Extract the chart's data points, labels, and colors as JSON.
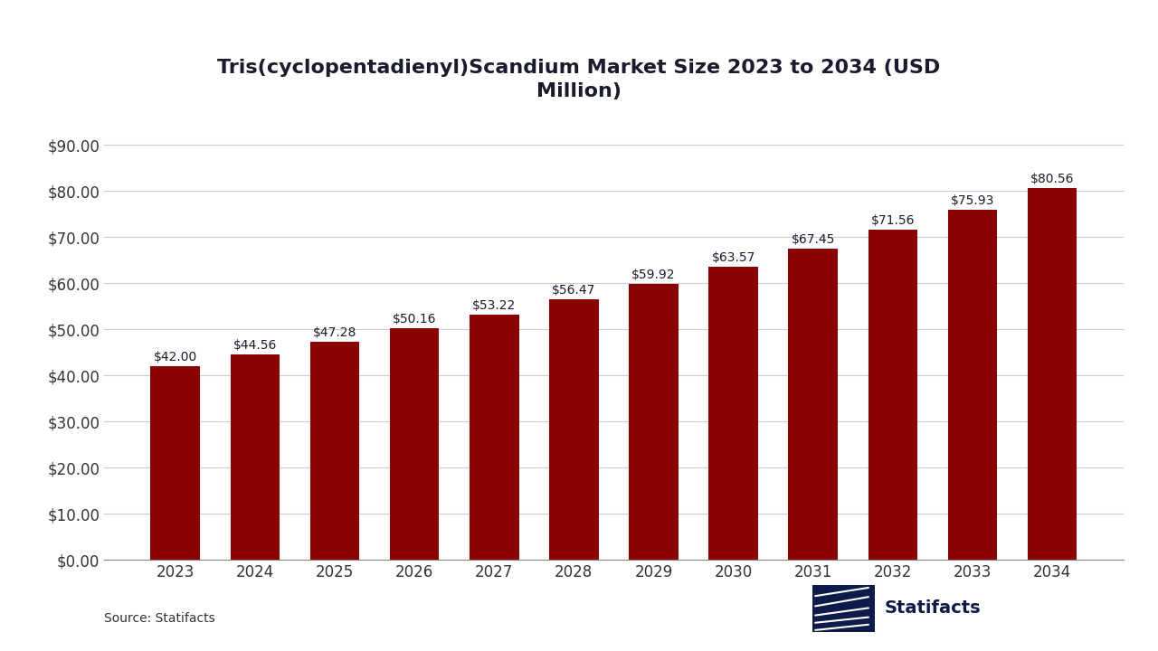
{
  "title": "Tris(cyclopentadienyl)Scandium Market Size 2023 to 2034 (USD\nMillion)",
  "years": [
    2023,
    2024,
    2025,
    2026,
    2027,
    2028,
    2029,
    2030,
    2031,
    2032,
    2033,
    2034
  ],
  "values": [
    42.0,
    44.56,
    47.28,
    50.16,
    53.22,
    56.47,
    59.92,
    63.57,
    67.45,
    71.56,
    75.93,
    80.56
  ],
  "bar_color": "#8B0000",
  "background_color": "#ffffff",
  "title_color": "#1a1a2e",
  "label_color": "#1a1a2e",
  "tick_color": "#333333",
  "grid_color": "#cccccc",
  "yticks": [
    0,
    10,
    20,
    30,
    40,
    50,
    60,
    70,
    80,
    90
  ],
  "ylim": [
    0,
    96
  ],
  "source_text": "Source: Statifacts",
  "statifacts_text": "Statifacts",
  "navy_color": "#0d1b4b",
  "title_fontsize": 16,
  "tick_fontsize": 12,
  "bar_label_fontsize": 10,
  "source_fontsize": 10
}
